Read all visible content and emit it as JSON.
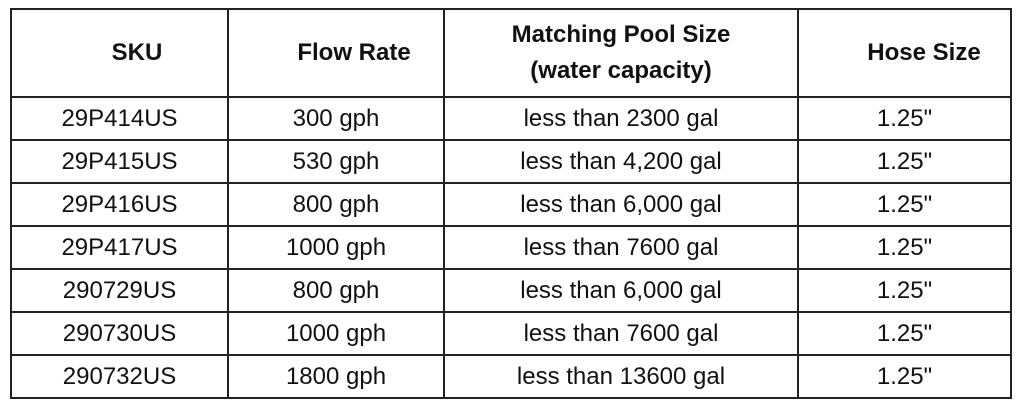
{
  "table": {
    "header": [
      "SKU",
      "Flow Rate",
      "Matching Pool Size (water capacity)",
      "Hose Size"
    ],
    "rows": [
      [
        "29P414US",
        "300 gph",
        "less than 2300 gal",
        "1.25\""
      ],
      [
        "29P415US",
        "530 gph",
        "less than 4,200 gal",
        "1.25\""
      ],
      [
        "29P416US",
        "800 gph",
        "less than 6,000 gal",
        "1.25\""
      ],
      [
        "29P417US",
        "1000 gph",
        "less than 7600 gal",
        "1.25\""
      ],
      [
        "290729US",
        "800 gph",
        "less than 6,000 gal",
        "1.25\""
      ],
      [
        "290730US",
        "1000 gph",
        "less than 7600 gal",
        "1.25\""
      ],
      [
        "290732US",
        "1800 gph",
        "less than 13600 gal",
        "1.25\""
      ]
    ]
  }
}
